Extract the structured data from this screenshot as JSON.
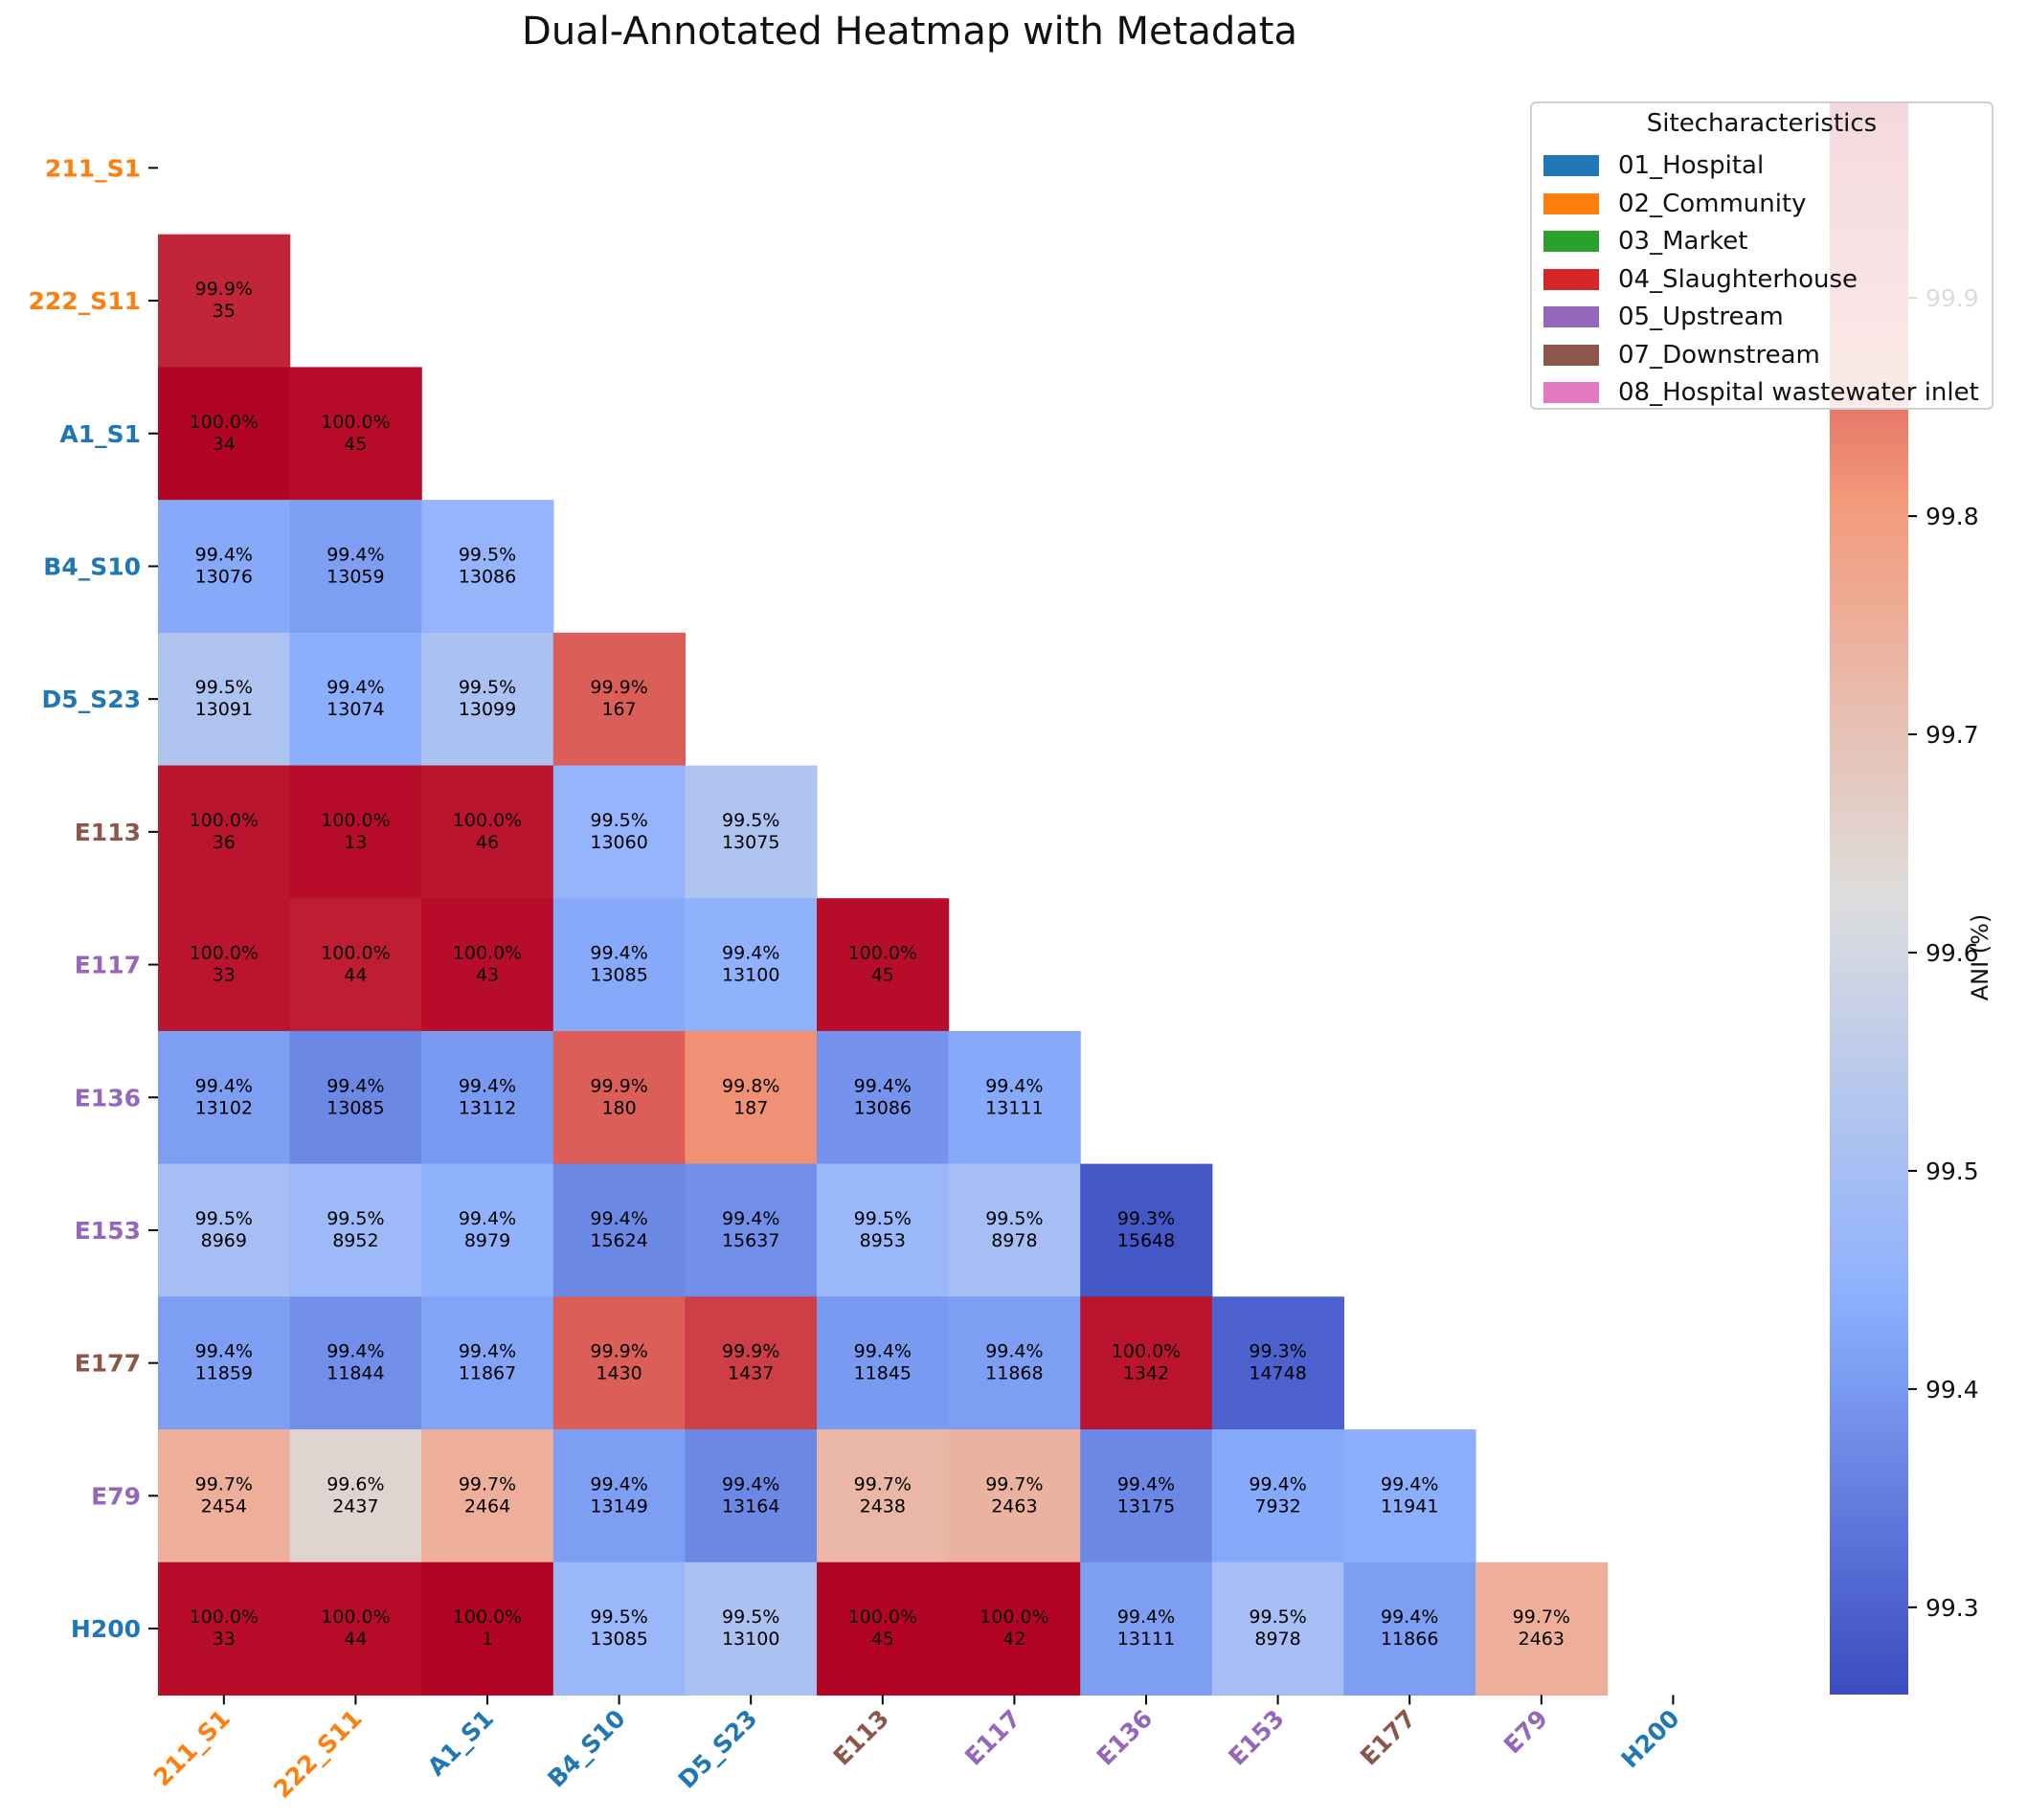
{
  "chart_data": {
    "type": "heatmap",
    "title": "Dual-Annotated Heatmap with Metadata",
    "labels": [
      "211_S1",
      "222_S11",
      "A1_S1",
      "B4_S10",
      "D5_S23",
      "E113",
      "E117",
      "E136",
      "E153",
      "E177",
      "E79",
      "H200"
    ],
    "label_groups": [
      "02_Community",
      "02_Community",
      "01_Hospital",
      "01_Hospital",
      "01_Hospital",
      "07_Downstream",
      "05_Upstream",
      "05_Upstream",
      "05_Upstream",
      "07_Downstream",
      "05_Upstream",
      "01_Hospital"
    ],
    "ani_percent": [
      [],
      [
        99.95
      ],
      [
        99.99,
        99.98
      ],
      [
        99.43,
        99.41,
        99.46
      ],
      [
        99.52,
        99.44,
        99.51,
        99.88
      ],
      [
        99.97,
        99.98,
        99.97,
        99.46,
        99.52
      ],
      [
        99.97,
        99.96,
        99.98,
        99.43,
        99.45,
        99.98
      ],
      [
        99.41,
        99.37,
        99.4,
        99.88,
        99.82,
        99.39,
        99.43
      ],
      [
        99.5,
        99.48,
        99.45,
        99.37,
        99.38,
        99.47,
        99.5,
        99.28
      ],
      [
        99.41,
        99.38,
        99.42,
        99.88,
        99.92,
        99.4,
        99.41,
        99.97,
        99.3
      ],
      [
        99.75,
        99.65,
        99.75,
        99.41,
        99.37,
        99.73,
        99.74,
        99.37,
        99.43,
        99.44
      ],
      [
        99.98,
        99.98,
        99.99,
        99.47,
        99.51,
        99.99,
        99.99,
        99.41,
        99.5,
        99.41,
        99.75
      ]
    ],
    "ani_labels": [
      [],
      [
        "99.9%"
      ],
      [
        "100.0%",
        "100.0%"
      ],
      [
        "99.4%",
        "99.4%",
        "99.5%"
      ],
      [
        "99.5%",
        "99.4%",
        "99.5%",
        "99.9%"
      ],
      [
        "100.0%",
        "100.0%",
        "100.0%",
        "99.5%",
        "99.5%"
      ],
      [
        "100.0%",
        "100.0%",
        "100.0%",
        "99.4%",
        "99.4%",
        "100.0%"
      ],
      [
        "99.4%",
        "99.4%",
        "99.4%",
        "99.9%",
        "99.8%",
        "99.4%",
        "99.4%"
      ],
      [
        "99.5%",
        "99.5%",
        "99.4%",
        "99.4%",
        "99.4%",
        "99.5%",
        "99.5%",
        "99.3%"
      ],
      [
        "99.4%",
        "99.4%",
        "99.4%",
        "99.9%",
        "99.9%",
        "99.4%",
        "99.4%",
        "100.0%",
        "99.3%"
      ],
      [
        "99.7%",
        "99.6%",
        "99.7%",
        "99.4%",
        "99.4%",
        "99.7%",
        "99.7%",
        "99.4%",
        "99.4%",
        "99.4%"
      ],
      [
        "100.0%",
        "100.0%",
        "100.0%",
        "99.5%",
        "99.5%",
        "100.0%",
        "100.0%",
        "99.4%",
        "99.5%",
        "99.4%",
        "99.7%"
      ]
    ],
    "counts": [
      [],
      [
        "35"
      ],
      [
        "34",
        "45"
      ],
      [
        "13076",
        "13059",
        "13086"
      ],
      [
        "13091",
        "13074",
        "13099",
        "167"
      ],
      [
        "36",
        "13",
        "46",
        "13060",
        "13075"
      ],
      [
        "33",
        "44",
        "43",
        "13085",
        "13100",
        "45"
      ],
      [
        "13102",
        "13085",
        "13112",
        "180",
        "187",
        "13086",
        "13111"
      ],
      [
        "8969",
        "8952",
        "8979",
        "15624",
        "15637",
        "8953",
        "8978",
        "15648"
      ],
      [
        "11859",
        "11844",
        "11867",
        "1430",
        "1437",
        "11845",
        "11868",
        "1342",
        "14748"
      ],
      [
        "2454",
        "2437",
        "2464",
        "13149",
        "13164",
        "2438",
        "2463",
        "13175",
        "7932",
        "11941"
      ],
      [
        "33",
        "44",
        "1",
        "13085",
        "13100",
        "45",
        "42",
        "13111",
        "8978",
        "11866",
        "2463"
      ]
    ],
    "colorbar": {
      "label": "ANI (%)",
      "colormap": "coolwarm",
      "range": [
        99.26,
        99.99
      ],
      "ticks": [
        "99.3",
        "99.4",
        "99.5",
        "99.6",
        "99.7",
        "99.8",
        "99.9"
      ]
    },
    "legend": {
      "title": "Sitecharacteristics",
      "placement": "top-right",
      "entries": [
        {
          "name": "01_Hospital",
          "color": "#1f77b4"
        },
        {
          "name": "02_Community",
          "color": "#ff7f0e"
        },
        {
          "name": "03_Market",
          "color": "#2ca02c"
        },
        {
          "name": "04_Slaughterhouse",
          "color": "#d62728"
        },
        {
          "name": "05_Upstream",
          "color": "#9467bd"
        },
        {
          "name": "07_Downstream",
          "color": "#8c564b"
        },
        {
          "name": "08_Hospital wastewater inlet",
          "color": "#e377c2"
        }
      ]
    },
    "group_colors": {
      "01_Hospital": "#1f77b4",
      "02_Community": "#ff7f0e",
      "03_Market": "#2ca02c",
      "04_Slaughterhouse": "#d62728",
      "05_Upstream": "#9467bd",
      "07_Downstream": "#8c564b",
      "08_Hospital wastewater inlet": "#e377c2"
    }
  }
}
